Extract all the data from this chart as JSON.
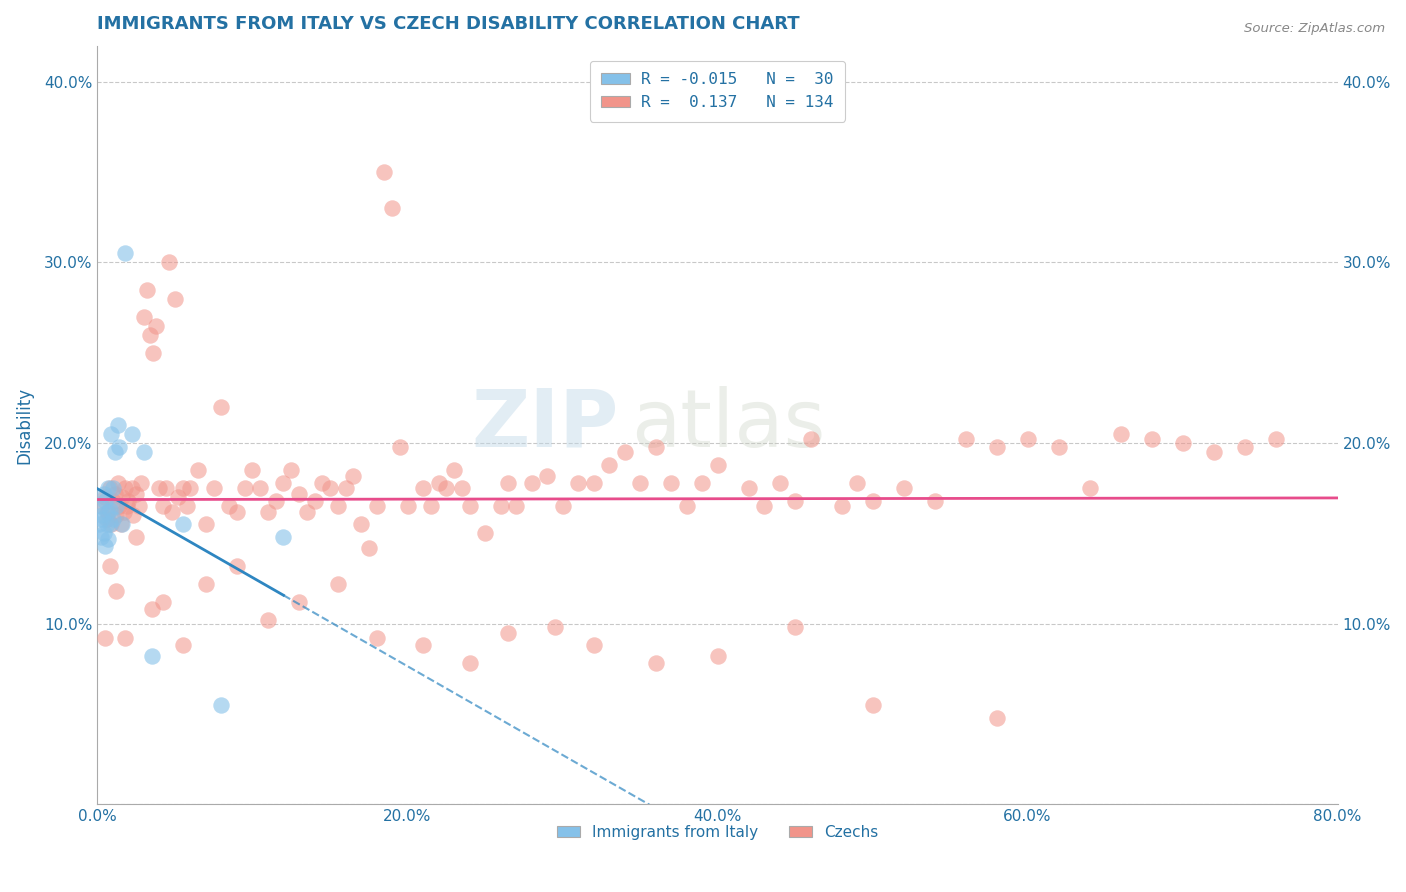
{
  "title": "IMMIGRANTS FROM ITALY VS CZECH DISABILITY CORRELATION CHART",
  "source_text": "Source: ZipAtlas.com",
  "ylabel": "Disability",
  "xlim": [
    0.0,
    0.8
  ],
  "ylim": [
    0.0,
    0.42
  ],
  "xticks": [
    0.0,
    0.1,
    0.2,
    0.3,
    0.4,
    0.5,
    0.6,
    0.7,
    0.8
  ],
  "xticklabels": [
    "0.0%",
    "",
    "20.0%",
    "",
    "40.0%",
    "",
    "60.0%",
    "",
    "80.0%"
  ],
  "yticks": [
    0.0,
    0.1,
    0.2,
    0.3,
    0.4
  ],
  "yticklabels": [
    "",
    "10.0%",
    "20.0%",
    "30.0%",
    "40.0%"
  ],
  "legend_items": [
    {
      "label": "R = -0.015   N =  30",
      "color": "#aed6f1"
    },
    {
      "label": "R =  0.137   N = 134",
      "color": "#f1948a"
    }
  ],
  "bottom_legend": [
    {
      "label": "Immigrants from Italy",
      "color": "#aed6f1"
    },
    {
      "label": "Czechs",
      "color": "#f1948a"
    }
  ],
  "watermark_zip": "ZIP",
  "watermark_atlas": "atlas",
  "italy_color": "#85c1e9",
  "czech_color": "#f1948a",
  "italy_line_color": "#2e86c1",
  "czech_line_color": "#e74c8b",
  "background_color": "#ffffff",
  "grid_color": "#bbbbbb",
  "title_color": "#2471a3",
  "axis_label_color": "#2471a3",
  "tick_color": "#2471a3",
  "italy_x": [
    0.001,
    0.002,
    0.002,
    0.003,
    0.003,
    0.004,
    0.004,
    0.005,
    0.005,
    0.006,
    0.006,
    0.007,
    0.007,
    0.008,
    0.008,
    0.009,
    0.01,
    0.01,
    0.011,
    0.012,
    0.013,
    0.014,
    0.016,
    0.018,
    0.022,
    0.03,
    0.035,
    0.055,
    0.08,
    0.12
  ],
  "italy_y": [
    0.155,
    0.148,
    0.165,
    0.16,
    0.158,
    0.15,
    0.172,
    0.143,
    0.168,
    0.155,
    0.162,
    0.175,
    0.147,
    0.163,
    0.155,
    0.205,
    0.158,
    0.175,
    0.195,
    0.165,
    0.21,
    0.198,
    0.155,
    0.305,
    0.205,
    0.195,
    0.082,
    0.155,
    0.055,
    0.148
  ],
  "czech_x": [
    0.003,
    0.005,
    0.006,
    0.007,
    0.008,
    0.009,
    0.01,
    0.011,
    0.012,
    0.013,
    0.014,
    0.015,
    0.016,
    0.017,
    0.018,
    0.019,
    0.02,
    0.022,
    0.023,
    0.025,
    0.027,
    0.028,
    0.03,
    0.032,
    0.034,
    0.036,
    0.038,
    0.04,
    0.042,
    0.044,
    0.046,
    0.048,
    0.05,
    0.052,
    0.055,
    0.058,
    0.06,
    0.065,
    0.07,
    0.075,
    0.08,
    0.085,
    0.09,
    0.095,
    0.1,
    0.105,
    0.11,
    0.115,
    0.12,
    0.125,
    0.13,
    0.135,
    0.14,
    0.145,
    0.15,
    0.155,
    0.16,
    0.165,
    0.17,
    0.175,
    0.18,
    0.185,
    0.19,
    0.195,
    0.2,
    0.21,
    0.215,
    0.22,
    0.225,
    0.23,
    0.235,
    0.24,
    0.25,
    0.26,
    0.265,
    0.27,
    0.28,
    0.29,
    0.3,
    0.31,
    0.32,
    0.33,
    0.34,
    0.35,
    0.36,
    0.37,
    0.38,
    0.39,
    0.4,
    0.42,
    0.43,
    0.44,
    0.45,
    0.46,
    0.48,
    0.49,
    0.5,
    0.52,
    0.54,
    0.56,
    0.58,
    0.6,
    0.62,
    0.64,
    0.66,
    0.68,
    0.7,
    0.72,
    0.74,
    0.76,
    0.005,
    0.008,
    0.012,
    0.018,
    0.025,
    0.035,
    0.042,
    0.055,
    0.07,
    0.09,
    0.11,
    0.13,
    0.155,
    0.18,
    0.21,
    0.24,
    0.265,
    0.295,
    0.32,
    0.36,
    0.4,
    0.45,
    0.5,
    0.58
  ],
  "czech_y": [
    0.165,
    0.17,
    0.158,
    0.162,
    0.175,
    0.155,
    0.168,
    0.172,
    0.16,
    0.178,
    0.165,
    0.155,
    0.17,
    0.162,
    0.175,
    0.165,
    0.168,
    0.175,
    0.16,
    0.172,
    0.165,
    0.178,
    0.27,
    0.285,
    0.26,
    0.25,
    0.265,
    0.175,
    0.165,
    0.175,
    0.3,
    0.162,
    0.28,
    0.17,
    0.175,
    0.165,
    0.175,
    0.185,
    0.155,
    0.175,
    0.22,
    0.165,
    0.162,
    0.175,
    0.185,
    0.175,
    0.162,
    0.168,
    0.178,
    0.185,
    0.172,
    0.162,
    0.168,
    0.178,
    0.175,
    0.165,
    0.175,
    0.182,
    0.155,
    0.142,
    0.165,
    0.35,
    0.33,
    0.198,
    0.165,
    0.175,
    0.165,
    0.178,
    0.175,
    0.185,
    0.175,
    0.165,
    0.15,
    0.165,
    0.178,
    0.165,
    0.178,
    0.182,
    0.165,
    0.178,
    0.178,
    0.188,
    0.195,
    0.178,
    0.198,
    0.178,
    0.165,
    0.178,
    0.188,
    0.175,
    0.165,
    0.178,
    0.168,
    0.202,
    0.165,
    0.178,
    0.168,
    0.175,
    0.168,
    0.202,
    0.198,
    0.202,
    0.198,
    0.175,
    0.205,
    0.202,
    0.2,
    0.195,
    0.198,
    0.202,
    0.092,
    0.132,
    0.118,
    0.092,
    0.148,
    0.108,
    0.112,
    0.088,
    0.122,
    0.132,
    0.102,
    0.112,
    0.122,
    0.092,
    0.088,
    0.078,
    0.095,
    0.098,
    0.088,
    0.078,
    0.082,
    0.098,
    0.055,
    0.048
  ]
}
